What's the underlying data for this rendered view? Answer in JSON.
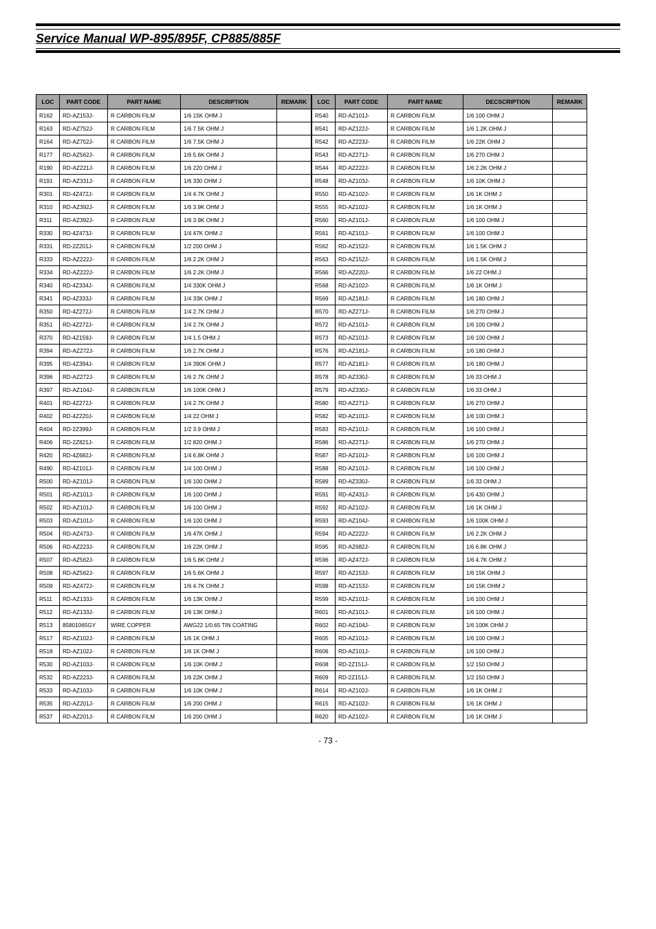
{
  "title": "Service Manual WP-895/895F, CP885/885F",
  "page_number": "- 73 -",
  "headers": {
    "loc": "LOC",
    "part_code": "PART CODE",
    "part_name": "PART NAME",
    "description": "DESCRIPTION",
    "remark": "REMARK",
    "decscription": "DECSCRIPTION"
  },
  "left_rows": [
    {
      "loc": "R162",
      "code": "RD-AZ153J-",
      "name": "R CARBON FILM",
      "desc": "1/6 15K OHM J"
    },
    {
      "loc": "R163",
      "code": "RD-AZ752J-",
      "name": "R CARBON FILM",
      "desc": "1/6 7.5K OHM J"
    },
    {
      "loc": "R164",
      "code": "RD-AZ752J-",
      "name": "R CARBON FILM",
      "desc": "1/6 7.5K OHM J"
    },
    {
      "loc": "R177",
      "code": "RD-AZ562J-",
      "name": "R CARBON FILM",
      "desc": "1/6 5.6K OHM J"
    },
    {
      "loc": "R190",
      "code": "RD-AZ221J-",
      "name": "R CARBON FILM",
      "desc": "1/6 220 OHM J"
    },
    {
      "loc": "R191",
      "code": "RD-AZ331J-",
      "name": "R CARBON FILM",
      "desc": "1/6 330 OHM J"
    },
    {
      "loc": "R301",
      "code": "RD-4Z472J-",
      "name": "R CARBON FILM",
      "desc": "1/4 4.7K OHM J"
    },
    {
      "loc": "R310",
      "code": "RD-AZ392J-",
      "name": "R CARBON FILM",
      "desc": "1/6 3.9K OHM J"
    },
    {
      "loc": "R311",
      "code": "RD-AZ392J-",
      "name": "R CARBON FILM",
      "desc": "1/6 3.9K OHM J"
    },
    {
      "loc": "R330",
      "code": "RD-4Z473J-",
      "name": "R CARBON FILM",
      "desc": "1/4 47K OHM J"
    },
    {
      "loc": "R331",
      "code": "RD-2Z201J-",
      "name": "R CARBON FILM",
      "desc": "1/2 200 OHM J"
    },
    {
      "loc": "R333",
      "code": "RD-AZ222J-",
      "name": "R CARBON FILM",
      "desc": "1/6 2.2K OHM J"
    },
    {
      "loc": "R334",
      "code": "RD-AZ222J-",
      "name": "R CARBON FILM",
      "desc": "1/6 2.2K OHM J"
    },
    {
      "loc": "R340",
      "code": "RD-4Z334J-",
      "name": "R CARBON FILM",
      "desc": "1/4 330K OHM J"
    },
    {
      "loc": "R341",
      "code": "RD-4Z333J-",
      "name": "R CARBON FILM",
      "desc": "1/4 33K OHM J"
    },
    {
      "loc": "R350",
      "code": "RD-4Z272J-",
      "name": "R CARBON FILM",
      "desc": "1/4 2.7K OHM J"
    },
    {
      "loc": "R351",
      "code": "RD-4Z272J-",
      "name": "R CARBON FILM",
      "desc": "1/4 2.7K OHM J"
    },
    {
      "loc": "R370",
      "code": "RD-4Z159J-",
      "name": "R CARBON FILM",
      "desc": "1/4 1.5 OHM J"
    },
    {
      "loc": "R394",
      "code": "RD-AZ272J-",
      "name": "R CARBON FILM",
      "desc": "1/6 2.7K OHM J"
    },
    {
      "loc": "R395",
      "code": "RD-4Z394J-",
      "name": "R CARBON FILM",
      "desc": "1/4 390K OHM J"
    },
    {
      "loc": "R396",
      "code": "RD-AZ272J-",
      "name": "R CARBON FILM",
      "desc": "1/6 2.7K OHM J"
    },
    {
      "loc": "R397",
      "code": "RD-AZ104J-",
      "name": "R CARBON FILM",
      "desc": "1/6 100K OHM J"
    },
    {
      "loc": "R401",
      "code": "RD-4Z272J-",
      "name": "R CARBON FILM",
      "desc": "1/4 2.7K OHM J"
    },
    {
      "loc": "R402",
      "code": "RD-4Z220J-",
      "name": "R CARBON FILM",
      "desc": "1/4 22 OHM J"
    },
    {
      "loc": "R404",
      "code": "RD-2Z399J-",
      "name": "R CARBON FILM",
      "desc": "1/2 3.9 OHM J"
    },
    {
      "loc": "R406",
      "code": "RD-2Z821J-",
      "name": "R CARBON FILM",
      "desc": "1/2 820 OHM J"
    },
    {
      "loc": "R420",
      "code": "RD-4Z682J-",
      "name": "R CARBON FILM",
      "desc": "1/4 6.8K OHM J"
    },
    {
      "loc": "R490",
      "code": "RD-4Z101J-",
      "name": "R CARBON FILM",
      "desc": "1/4 100 OHM J"
    },
    {
      "loc": "R500",
      "code": "RD-AZ101J-",
      "name": "R CARBON FILM",
      "desc": "1/6 100 OHM J"
    },
    {
      "loc": "R501",
      "code": "RD-AZ101J-",
      "name": "R CARBON FILM",
      "desc": "1/6 100 OHM J"
    },
    {
      "loc": "R502",
      "code": "RD-AZ101J-",
      "name": "R CARBON FILM",
      "desc": "1/6 100 OHM J"
    },
    {
      "loc": "R503",
      "code": "RD-AZ101J-",
      "name": "R CARBON FILM",
      "desc": "1/6 100 OHM J"
    },
    {
      "loc": "R504",
      "code": "RD-AZ473J-",
      "name": "R CARBON FILM",
      "desc": "1/6 47K OHM J"
    },
    {
      "loc": "R506",
      "code": "RD-AZ223J-",
      "name": "R CARBON FILM",
      "desc": "1/6 22K OHM J"
    },
    {
      "loc": "R507",
      "code": "RD-AZ562J-",
      "name": "R CARBON FILM",
      "desc": "1/6 5.6K OHM J"
    },
    {
      "loc": "R508",
      "code": "RD-AZ562J-",
      "name": "R CARBON FILM",
      "desc": "1/6 5.6K OHM J"
    },
    {
      "loc": "R509",
      "code": "RD-AZ472J-",
      "name": "R CARBON FILM",
      "desc": "1/6 4.7K OHM J"
    },
    {
      "loc": "R511",
      "code": "RD-AZ133J-",
      "name": "R CARBON FILM",
      "desc": "1/6 13K OHM J"
    },
    {
      "loc": "R512",
      "code": "RD-AZ133J-",
      "name": "R CARBON FILM",
      "desc": "1/6 13K OHM J"
    },
    {
      "loc": "R513",
      "code": "85801065GY",
      "name": "WIRE COPPER",
      "desc": "AWG22 1/0.65 TIN COATING"
    },
    {
      "loc": "R517",
      "code": "RD-AZ102J-",
      "name": "R CARBON FILM",
      "desc": "1/6 1K OHM J"
    },
    {
      "loc": "R518",
      "code": "RD-AZ102J-",
      "name": "R CARBON FILM",
      "desc": "1/6 1K OHM J"
    },
    {
      "loc": "R530",
      "code": "RD-AZ103J-",
      "name": "R CARBON FILM",
      "desc": "1/6 10K OHM J"
    },
    {
      "loc": "R532",
      "code": "RD-AZ223J-",
      "name": "R CARBON FILM",
      "desc": "1/6 22K OHM J"
    },
    {
      "loc": "R533",
      "code": "RD-AZ103J-",
      "name": "R CARBON FILM",
      "desc": "1/6 10K OHM J"
    },
    {
      "loc": "R535",
      "code": "RD-AZ201J-",
      "name": "R CARBON FILM",
      "desc": "1/6 200 OHM J"
    },
    {
      "loc": "R537",
      "code": "RD-AZ201J-",
      "name": "R CARBON FILM",
      "desc": "1/6 200 OHM J"
    }
  ],
  "right_rows": [
    {
      "loc": "R540",
      "code": "RD-AZ101J-",
      "name": "R CARBON FILM",
      "desc": "1/6 100 OHM J"
    },
    {
      "loc": "R541",
      "code": "RD-AZ122J-",
      "name": "R CARBON FILM",
      "desc": "1/6 1.2K OHM J"
    },
    {
      "loc": "R542",
      "code": "RD-AZ223J-",
      "name": "R CARBON FILM",
      "desc": "1/6 22K OHM J"
    },
    {
      "loc": "R543",
      "code": "RD-AZ271J-",
      "name": "R CARBON FILM",
      "desc": "1/6 270 OHM J"
    },
    {
      "loc": "R544",
      "code": "RD-AZ222J-",
      "name": "R CARBON FILM",
      "desc": "1/6 2.2K OHM J"
    },
    {
      "loc": "R548",
      "code": "RD-AZ103J-",
      "name": "R CARBON FILM",
      "desc": "1/6 10K OHM J"
    },
    {
      "loc": "R550",
      "code": "RD-AZ102J-",
      "name": "R CARBON FILM",
      "desc": "1/6 1K OHM J"
    },
    {
      "loc": "R555",
      "code": "RD-AZ102J-",
      "name": "R CARBON FILM",
      "desc": "1/6 1K OHM J"
    },
    {
      "loc": "R560",
      "code": "RD-AZ101J-",
      "name": "R CARBON FILM",
      "desc": "1/6 100 OHM J"
    },
    {
      "loc": "R561",
      "code": "RD-AZ101J-",
      "name": "R CARBON FILM",
      "desc": "1/6 100 OHM J"
    },
    {
      "loc": "R562",
      "code": "RD-AZ152J-",
      "name": "R CARBON FILM",
      "desc": "1/6 1.5K OHM J"
    },
    {
      "loc": "R563",
      "code": "RD-AZ152J-",
      "name": "R CARBON FILM",
      "desc": "1/6 1.5K OHM J"
    },
    {
      "loc": "R566",
      "code": "RD-AZ220J-",
      "name": "R CARBON FILM",
      "desc": "1/6 22 OHM J"
    },
    {
      "loc": "R568",
      "code": "RD-AZ102J-",
      "name": "R CARBON FILM",
      "desc": "1/6 1K OHM J"
    },
    {
      "loc": "R569",
      "code": "RD-AZ181J-",
      "name": "R CARBON FILM",
      "desc": "1/6 180 OHM J"
    },
    {
      "loc": "R570",
      "code": "RD-AZ271J-",
      "name": "R CARBON FILM",
      "desc": "1/6 270 OHM J"
    },
    {
      "loc": "R572",
      "code": "RD-AZ101J-",
      "name": "R CARBON FILM",
      "desc": "1/6 100 OHM J"
    },
    {
      "loc": "R573",
      "code": "RD-AZ101J-",
      "name": "R CARBON FILM",
      "desc": "1/6 100 OHM J"
    },
    {
      "loc": "R576",
      "code": "RD-AZ181J-",
      "name": "R CARBON FILM",
      "desc": "1/6 180 OHM J"
    },
    {
      "loc": "R577",
      "code": "RD-AZ181J-",
      "name": "R CARBON FILM",
      "desc": "1/6 180 OHM J"
    },
    {
      "loc": "R578",
      "code": "RD-AZ330J-",
      "name": "R CARBON FILM",
      "desc": "1/6 33 OHM J"
    },
    {
      "loc": "R579",
      "code": "RD-AZ330J-",
      "name": "R CARBON FILM",
      "desc": "1/6 33 OHM J"
    },
    {
      "loc": "R580",
      "code": "RD-AZ271J-",
      "name": "R CARBON FILM",
      "desc": "1/6 270 OHM J"
    },
    {
      "loc": "R582",
      "code": "RD-AZ101J-",
      "name": "R CARBON FILM",
      "desc": "1/6 100 OHM J"
    },
    {
      "loc": "R583",
      "code": "RD-AZ101J-",
      "name": "R CARBON FILM",
      "desc": "1/6 100 OHM J"
    },
    {
      "loc": "R586",
      "code": "RD-AZ271J-",
      "name": "R CARBON FILM",
      "desc": "1/6 270 OHM J"
    },
    {
      "loc": "R587",
      "code": "RD-AZ101J-",
      "name": "R CARBON FILM",
      "desc": "1/6 100 OHM J"
    },
    {
      "loc": "R588",
      "code": "RD-AZ101J-",
      "name": "R CARBON FILM",
      "desc": "1/6 100 OHM J"
    },
    {
      "loc": "R589",
      "code": "RD-AZ330J-",
      "name": "R CARBON FILM",
      "desc": "1/6 33 OHM J"
    },
    {
      "loc": "R591",
      "code": "RD-AZ431J-",
      "name": "R CARBON FILM",
      "desc": "1/6 430 OHM J"
    },
    {
      "loc": "R592",
      "code": "RD-AZ102J-",
      "name": "R CARBON FILM",
      "desc": "1/6 1K OHM J"
    },
    {
      "loc": "R593",
      "code": "RD-AZ104J-",
      "name": "R CARBON FILM",
      "desc": "1/6 100K OHM J"
    },
    {
      "loc": "R594",
      "code": "RD-AZ222J-",
      "name": "R CARBON FILM",
      "desc": "1/6 2.2K OHM J"
    },
    {
      "loc": "R595",
      "code": "RD-AZ682J-",
      "name": "R CARBON FILM",
      "desc": "1/6 6.8K OHM J"
    },
    {
      "loc": "R596",
      "code": "RD-AZ472J-",
      "name": "R CARBON FILM",
      "desc": "1/6 4.7K OHM J"
    },
    {
      "loc": "R597",
      "code": "RD-AZ153J-",
      "name": "R CARBON FILM",
      "desc": "1/6 15K OHM J"
    },
    {
      "loc": "R598",
      "code": "RD-AZ153J-",
      "name": "R CARBON FILM",
      "desc": "1/6 15K OHM J"
    },
    {
      "loc": "R599",
      "code": "RD-AZ101J-",
      "name": "R CARBON FILM",
      "desc": "1/6 100 OHM J"
    },
    {
      "loc": "R601",
      "code": "RD-AZ101J-",
      "name": "R CARBON FILM",
      "desc": "1/6 100 OHM J"
    },
    {
      "loc": "R602",
      "code": "RD-AZ104J-",
      "name": "R CARBON FILM",
      "desc": "1/6 100K OHM J"
    },
    {
      "loc": "R605",
      "code": "RD-AZ101J-",
      "name": "R CARBON FILM",
      "desc": "1/6 100 OHM J"
    },
    {
      "loc": "R606",
      "code": "RD-AZ101J-",
      "name": "R CARBON FILM",
      "desc": "1/6 100 OHM J"
    },
    {
      "loc": "R608",
      "code": "RD-2Z151J-",
      "name": "R CARBON FILM",
      "desc": "1/2 150 OHM J"
    },
    {
      "loc": "R609",
      "code": "RD-2Z151J-",
      "name": "R CARBON FILM",
      "desc": "1/2 150 OHM J"
    },
    {
      "loc": "R614",
      "code": "RD-AZ102J-",
      "name": "R CARBON FILM",
      "desc": "1/6 1K OHM J"
    },
    {
      "loc": "R615",
      "code": "RD-AZ102J-",
      "name": "R CARBON FILM",
      "desc": "1/6 1K OHM J"
    },
    {
      "loc": "R620",
      "code": "RD-AZ102J-",
      "name": "R CARBON FILM",
      "desc": "1/6 1K OHM J"
    }
  ]
}
